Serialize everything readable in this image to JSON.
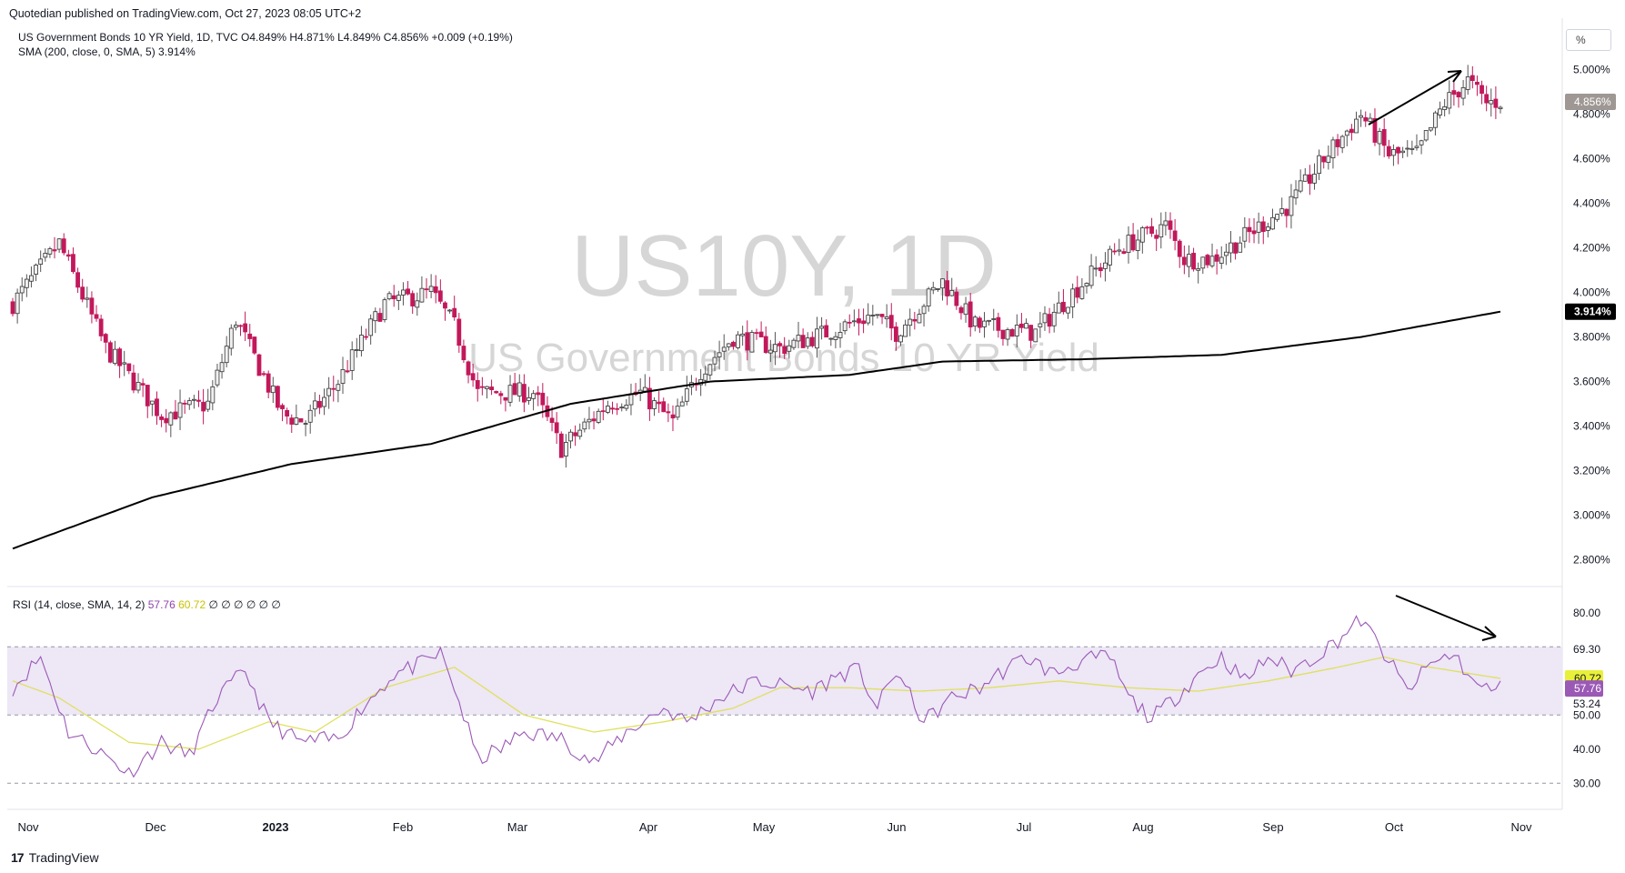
{
  "header": {
    "published": "Quotedian published on TradingView.com, Oct 27, 2023 08:05 UTC+2",
    "symbol_line": "US Government Bonds 10 YR Yield, 1D, TVC  O4.849%  H4.871%  L4.849%  C4.856%  +0.009 (+0.19%)",
    "sma_line": "SMA (200, close, 0, SMA, 5)  3.914%",
    "percent_button": "%"
  },
  "watermark": {
    "symbol": "US10Y, 1D",
    "name": "US Government Bonds 10 YR Yield"
  },
  "footer": {
    "brand": "TradingView"
  },
  "colors": {
    "up": "#f0f0f0",
    "down": "#c2185b",
    "wick": "#555555",
    "sma": "#000000",
    "rsi": "#9b59b6",
    "rsi_ma": "#e0e060",
    "rsi_band": "#ede7f6"
  },
  "rsi_panel": {
    "label": "RSI (14, close, SMA, 14, 2)",
    "rsi_value": "57.76",
    "rsi_ma_value": "60.72",
    "zeros": "∅ ∅ ∅ ∅ ∅ ∅"
  },
  "chart_data": [
    {
      "type": "candlestick",
      "title": "US10Y, 1D",
      "ylim": [
        2.7,
        5.15
      ],
      "y_ticks": [
        "2.800%",
        "3.000%",
        "3.200%",
        "3.400%",
        "3.600%",
        "3.800%",
        "4.000%",
        "4.200%",
        "4.400%",
        "4.600%",
        "4.800%",
        "5.000%"
      ],
      "x_ticks": [
        "Nov",
        "Dec",
        "2023",
        "Feb",
        "Mar",
        "Apr",
        "May",
        "Jun",
        "Jul",
        "Aug",
        "Sep",
        "Oct",
        "Nov"
      ],
      "price_keypoints": [
        [
          0,
          3.95
        ],
        [
          10,
          4.22
        ],
        [
          20,
          3.75
        ],
        [
          32,
          3.45
        ],
        [
          42,
          3.5
        ],
        [
          48,
          3.88
        ],
        [
          58,
          3.45
        ],
        [
          63,
          3.42
        ],
        [
          70,
          3.6
        ],
        [
          80,
          3.95
        ],
        [
          90,
          4.0
        ],
        [
          95,
          3.85
        ],
        [
          100,
          3.55
        ],
        [
          112,
          3.55
        ],
        [
          118,
          3.3
        ],
        [
          128,
          3.5
        ],
        [
          135,
          3.55
        ],
        [
          142,
          3.42
        ],
        [
          148,
          3.65
        ],
        [
          155,
          3.8
        ],
        [
          165,
          3.75
        ],
        [
          175,
          3.82
        ],
        [
          185,
          3.9
        ],
        [
          190,
          3.82
        ],
        [
          200,
          4.05
        ],
        [
          207,
          3.85
        ],
        [
          220,
          3.82
        ],
        [
          228,
          4.0
        ],
        [
          238,
          4.2
        ],
        [
          248,
          4.3
        ],
        [
          252,
          4.15
        ],
        [
          258,
          4.15
        ],
        [
          265,
          4.25
        ],
        [
          275,
          4.4
        ],
        [
          282,
          4.6
        ],
        [
          290,
          4.8
        ],
        [
          296,
          4.62
        ],
        [
          302,
          4.62
        ],
        [
          308,
          4.85
        ],
        [
          313,
          4.95
        ],
        [
          317,
          4.85
        ],
        [
          320,
          4.86
        ]
      ],
      "last_price_label": "4.856%",
      "sma": {
        "name": "SMA (200, close, 0, SMA, 5)",
        "label": "3.914%",
        "keypoints": [
          [
            0,
            2.85
          ],
          [
            30,
            3.08
          ],
          [
            60,
            3.23
          ],
          [
            90,
            3.32
          ],
          [
            120,
            3.5
          ],
          [
            150,
            3.6
          ],
          [
            180,
            3.63
          ],
          [
            200,
            3.69
          ],
          [
            230,
            3.7
          ],
          [
            260,
            3.72
          ],
          [
            290,
            3.8
          ],
          [
            320,
            3.914
          ]
        ]
      }
    },
    {
      "type": "line",
      "title": "RSI (14, close, SMA, 14, 2)",
      "ylim": [
        25,
        85
      ],
      "y_ticks": [
        "30.00",
        "40.00",
        "50.00",
        "53.24",
        "69.30",
        "80.00"
      ],
      "bands": [
        30,
        50,
        70
      ],
      "series": [
        {
          "name": "RSI",
          "last": 57.76,
          "keypoints": [
            [
              0,
              58
            ],
            [
              6,
              67
            ],
            [
              12,
              45
            ],
            [
              18,
              40
            ],
            [
              25,
              33
            ],
            [
              32,
              42
            ],
            [
              38,
              38
            ],
            [
              44,
              55
            ],
            [
              50,
              63
            ],
            [
              55,
              48
            ],
            [
              62,
              42
            ],
            [
              70,
              43
            ],
            [
              75,
              52
            ],
            [
              82,
              62
            ],
            [
              88,
              65
            ],
            [
              92,
              68
            ],
            [
              95,
              58
            ],
            [
              100,
              37
            ],
            [
              105,
              40
            ],
            [
              110,
              45
            ],
            [
              118,
              43
            ],
            [
              125,
              36
            ],
            [
              132,
              45
            ],
            [
              140,
              52
            ],
            [
              145,
              48
            ],
            [
              152,
              55
            ],
            [
              160,
              60
            ],
            [
              168,
              58
            ],
            [
              172,
              57
            ],
            [
              178,
              62
            ],
            [
              182,
              63
            ],
            [
              186,
              52
            ],
            [
              190,
              63
            ],
            [
              196,
              48
            ],
            [
              202,
              55
            ],
            [
              208,
              58
            ],
            [
              212,
              62
            ],
            [
              218,
              67
            ],
            [
              224,
              62
            ],
            [
              230,
              66
            ],
            [
              236,
              67
            ],
            [
              240,
              55
            ],
            [
              245,
              49
            ],
            [
              250,
              55
            ],
            [
              255,
              62
            ],
            [
              260,
              67
            ],
            [
              265,
              60
            ],
            [
              270,
              67
            ],
            [
              275,
              63
            ],
            [
              280,
              67
            ],
            [
              285,
              72
            ],
            [
              290,
              78
            ],
            [
              295,
              68
            ],
            [
              300,
              57
            ],
            [
              305,
              65
            ],
            [
              310,
              68
            ],
            [
              315,
              58
            ],
            [
              320,
              57.76
            ]
          ]
        },
        {
          "name": "RSI SMA",
          "last": 60.72,
          "keypoints": [
            [
              0,
              60
            ],
            [
              10,
              55
            ],
            [
              25,
              42
            ],
            [
              40,
              40
            ],
            [
              55,
              48
            ],
            [
              65,
              45
            ],
            [
              80,
              58
            ],
            [
              95,
              64
            ],
            [
              110,
              50
            ],
            [
              125,
              45
            ],
            [
              140,
              48
            ],
            [
              155,
              52
            ],
            [
              165,
              58
            ],
            [
              180,
              58
            ],
            [
              195,
              57
            ],
            [
              210,
              58
            ],
            [
              225,
              60
            ],
            [
              240,
              58
            ],
            [
              255,
              57
            ],
            [
              270,
              60
            ],
            [
              285,
              64
            ],
            [
              295,
              67
            ],
            [
              305,
              64
            ],
            [
              320,
              60.72
            ]
          ]
        }
      ]
    }
  ]
}
